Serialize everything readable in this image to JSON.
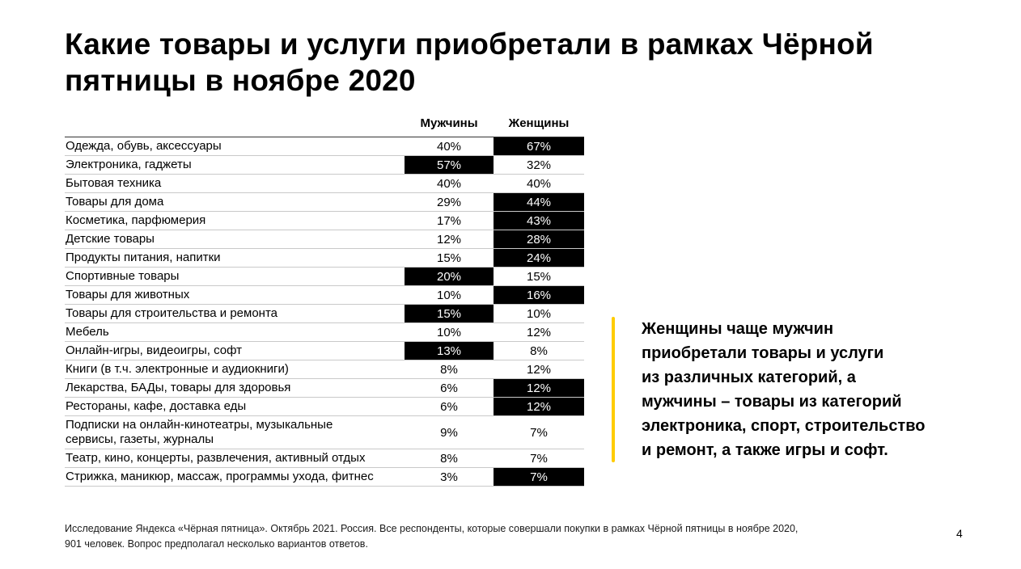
{
  "slide": {
    "title": "Какие товары и услуги приобретали в рамках Чёрной\nпятницы в ноябре 2020",
    "callout": "Женщины чаще мужчин\nприобретали товары и услуги\nиз различных категорий, а\nмужчины – товары из категорий\nэлектроника, спорт, строительство\nи ремонт, а также игры и софт.",
    "footnote": "Исследование Яндекса «Чёрная пятница». Октябрь 2021. Россия. Все респонденты, которые совершали покупки в рамках Чёрной пятницы в ноябре 2020,\n901 человек. Вопрос предполагал несколько вариантов ответов.",
    "page_number": "4",
    "accent_color": "#FFCC00",
    "highlight_color": "#000000"
  },
  "chart_data": {
    "type": "table",
    "title": "Какие товары и услуги приобретали в рамках Чёрной пятницы в ноябре 2020",
    "columns": [
      "Мужчины",
      "Женщины"
    ],
    "value_unit": "%",
    "rows": [
      {
        "category": "Одежда, обувь, аксессуары",
        "men": 40,
        "women": 67,
        "men_highlight": false,
        "women_highlight": true
      },
      {
        "category": "Электроника, гаджеты",
        "men": 57,
        "women": 32,
        "men_highlight": true,
        "women_highlight": false
      },
      {
        "category": "Бытовая техника",
        "men": 40,
        "women": 40,
        "men_highlight": false,
        "women_highlight": false
      },
      {
        "category": "Товары для дома",
        "men": 29,
        "women": 44,
        "men_highlight": false,
        "women_highlight": true
      },
      {
        "category": "Косметика, парфюмерия",
        "men": 17,
        "women": 43,
        "men_highlight": false,
        "women_highlight": true
      },
      {
        "category": "Детские товары",
        "men": 12,
        "women": 28,
        "men_highlight": false,
        "women_highlight": true
      },
      {
        "category": "Продукты питания, напитки",
        "men": 15,
        "women": 24,
        "men_highlight": false,
        "women_highlight": true
      },
      {
        "category": "Спортивные товары",
        "men": 20,
        "women": 15,
        "men_highlight": true,
        "women_highlight": false
      },
      {
        "category": "Товары для животных",
        "men": 10,
        "women": 16,
        "men_highlight": false,
        "women_highlight": true
      },
      {
        "category": "Товары для строительства и ремонта",
        "men": 15,
        "women": 10,
        "men_highlight": true,
        "women_highlight": false
      },
      {
        "category": "Мебель",
        "men": 10,
        "women": 12,
        "men_highlight": false,
        "women_highlight": false
      },
      {
        "category": "Онлайн-игры, видеоигры, софт",
        "men": 13,
        "women": 8,
        "men_highlight": true,
        "women_highlight": false
      },
      {
        "category": "Книги (в т.ч. электронные и аудиокниги)",
        "men": 8,
        "women": 12,
        "men_highlight": false,
        "women_highlight": false
      },
      {
        "category": "Лекарства, БАДы, товары для здоровья",
        "men": 6,
        "women": 12,
        "men_highlight": false,
        "women_highlight": true
      },
      {
        "category": "Рестораны, кафе, доставка еды",
        "men": 6,
        "women": 12,
        "men_highlight": false,
        "women_highlight": true
      },
      {
        "category": "Подписки на онлайн-кинотеатры, музыкальные\nсервисы, газеты, журналы",
        "men": 9,
        "women": 7,
        "men_highlight": false,
        "women_highlight": false
      },
      {
        "category": "Театр, кино, концерты, развлечения, активный отдых",
        "men": 8,
        "women": 7,
        "men_highlight": false,
        "women_highlight": false
      },
      {
        "category": "Стрижка, маникюр, массаж, программы ухода, фитнес",
        "men": 3,
        "women": 7,
        "men_highlight": false,
        "women_highlight": true
      }
    ]
  }
}
